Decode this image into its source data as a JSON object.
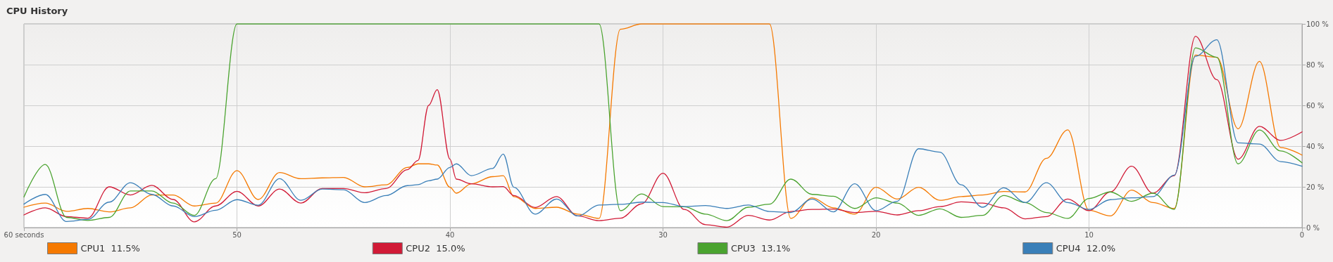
{
  "chart_data": {
    "type": "line",
    "title": "CPU History",
    "legend": "bottom",
    "grid": true,
    "x": [
      60,
      59,
      58,
      57,
      56,
      55,
      54,
      53,
      52,
      51,
      50,
      49,
      48,
      47,
      46,
      45,
      44,
      43,
      42,
      41.5,
      41,
      40.6,
      40,
      39.7,
      39,
      38,
      37.5,
      37,
      36,
      35,
      34,
      33,
      32,
      31,
      30,
      29,
      28,
      27,
      26,
      25,
      24,
      23,
      22,
      21,
      20,
      19,
      18,
      17,
      16,
      15,
      14,
      13,
      12,
      11,
      10,
      9,
      8,
      7,
      6,
      5,
      4,
      3,
      2,
      1,
      0
    ],
    "xlim": [
      60,
      0
    ],
    "xticks": [
      {
        "value": 60,
        "label": "60 seconds"
      },
      50,
      40,
      30,
      20,
      10,
      0
    ],
    "ylim": [
      0,
      100
    ],
    "yticks": [
      {
        "value": 0,
        "label": "0 %"
      },
      {
        "value": 20,
        "label": "20 %"
      },
      {
        "value": 40,
        "label": "40 %"
      },
      {
        "value": 60,
        "label": "60 %"
      },
      {
        "value": 80,
        "label": "80 %"
      },
      {
        "value": 100,
        "label": "100 %"
      }
    ],
    "series": [
      {
        "name": "CPU1  11.5%",
        "color": "#f57900",
        "values": [
          10,
          12,
          8,
          9.4,
          7.7,
          9.7,
          16,
          16,
          10.6,
          12,
          28,
          13.8,
          27,
          24,
          24.4,
          24.6,
          20,
          21,
          29.5,
          31.3,
          31.3,
          30.7,
          19.8,
          16.9,
          21.5,
          25,
          25.5,
          15.2,
          9.4,
          10,
          6.6,
          4.5,
          97.4,
          100,
          100,
          100,
          100,
          100,
          100,
          100,
          4.5,
          14.6,
          9.7,
          6.6,
          19.8,
          14,
          19.8,
          13.4,
          15.2,
          16,
          17.7,
          17.5,
          34,
          48,
          8.5,
          5.7,
          18.4,
          12.3,
          9.4,
          84.7,
          83.6,
          48.5,
          81.6,
          39.3,
          35.6
        ]
      },
      {
        "name": "CPU2  15.0%",
        "color": "#d11a36",
        "values": [
          6.2,
          9.7,
          5.4,
          4.6,
          20,
          16,
          20.7,
          13.8,
          2.8,
          10.6,
          17.8,
          10.6,
          18.9,
          12,
          19.2,
          19.2,
          17.1,
          19.2,
          28.4,
          33,
          60,
          67.7,
          33.6,
          23.8,
          21.5,
          20,
          20.1,
          15.7,
          9.9,
          15.2,
          5.7,
          3.4,
          4.6,
          11.7,
          26.7,
          8.9,
          1.4,
          0.2,
          6,
          3.7,
          7.9,
          8.9,
          9.1,
          7.4,
          8,
          6.2,
          8.3,
          10.3,
          12.6,
          12,
          9.7,
          4.3,
          5.4,
          14,
          8.3,
          17.5,
          30.1,
          16.9,
          25.5,
          93.9,
          72.6,
          33.6,
          49.7,
          42.8,
          47
        ]
      },
      {
        "name": "CPU3  13.1%",
        "color": "#4aa32f",
        "values": [
          15,
          31,
          5,
          3.5,
          5,
          18,
          18,
          12,
          6,
          24,
          100,
          100,
          100,
          100,
          100,
          100,
          100,
          100,
          100,
          100,
          100,
          100,
          100,
          100,
          100,
          100,
          100,
          100,
          100,
          100,
          100,
          100,
          8.3,
          16.5,
          10.3,
          10.2,
          6.6,
          3.4,
          10,
          11.5,
          23.8,
          16.3,
          15.4,
          9.4,
          14.6,
          12,
          6,
          9.2,
          5,
          6,
          15.7,
          12.3,
          7.4,
          4.5,
          14.3,
          17.5,
          12.9,
          16.9,
          8.9,
          88.2,
          83.6,
          31.3,
          47.9,
          37.6,
          31.8
        ]
      },
      {
        "name": "CPU4  12.0%",
        "color": "#3a7fb8",
        "values": [
          11.5,
          16.3,
          3,
          4,
          12.5,
          22,
          16.3,
          10.6,
          5.4,
          8.5,
          13.7,
          11,
          24,
          13.4,
          18.9,
          18.6,
          12.3,
          15.7,
          20.6,
          21.1,
          23,
          23.8,
          29.5,
          31.3,
          25.5,
          29,
          36.1,
          19.8,
          6.6,
          14,
          5.7,
          11.1,
          11.4,
          12.5,
          12.3,
          10.3,
          10.8,
          9.4,
          11.1,
          7.9,
          7.4,
          14,
          7.7,
          21.5,
          8.3,
          12.9,
          38.7,
          37,
          21,
          10,
          19.5,
          12.3,
          22,
          12.3,
          8.9,
          13.7,
          14.6,
          15.2,
          25.7,
          84.1,
          92.2,
          41.6,
          41,
          32.4,
          30.1
        ]
      }
    ]
  }
}
